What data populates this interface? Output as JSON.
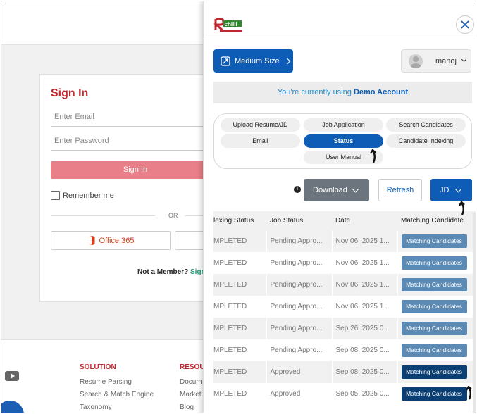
{
  "signin": {
    "title": "Sign In",
    "email_placeholder": "Enter Email",
    "password_placeholder": "Enter Password",
    "signin_label": "Sign In",
    "remember_label": "Remember me",
    "or_label": "OR",
    "office_label": "Office 365",
    "not_member": "Not a Member?",
    "signup_label": "Sign U"
  },
  "footer": {
    "col1": {
      "head": "SOLUTION",
      "items": [
        "Resume Parsing",
        "Search & Match Engine",
        "Taxonomy"
      ]
    },
    "col2": {
      "head": "RESOU",
      "items": [
        "Docum",
        "Market",
        "Blog"
      ]
    }
  },
  "panel": {
    "size_label": "Medium Size",
    "user_name": "manoj",
    "demo_text": "You're currently using",
    "demo_account": "Demo Account",
    "tabs": [
      {
        "label": "Upload Resume/JD",
        "active": false
      },
      {
        "label": "Job Application",
        "active": false
      },
      {
        "label": "Search Candidates",
        "active": false
      },
      {
        "label": "Email",
        "active": false
      },
      {
        "label": "Status",
        "active": true
      },
      {
        "label": "Candidate Indexing",
        "active": false
      },
      {
        "label": "User Manual",
        "active": false
      }
    ],
    "download_label": "Download",
    "refresh_label": "Refresh",
    "jd_label": "JD",
    "columns": [
      "lexing Status",
      "Job Status",
      "Date",
      "Matching Candidate"
    ],
    "rows": [
      {
        "indexing": "MPLETED",
        "job_status": "Pending Appro...",
        "date": "Nov 06, 2025 1...",
        "match": "Matching Candidates",
        "dark": false
      },
      {
        "indexing": "MPLETED",
        "job_status": "Pending Appro...",
        "date": "Nov 06, 2025 1...",
        "match": "Matching Candidates",
        "dark": false
      },
      {
        "indexing": "MPLETED",
        "job_status": "Pending Appro...",
        "date": "Nov 06, 2025 1...",
        "match": "Matching Candidates",
        "dark": false
      },
      {
        "indexing": "MPLETED",
        "job_status": "Pending Appro...",
        "date": "Nov 06, 2025 1...",
        "match": "Matching Candidates",
        "dark": false
      },
      {
        "indexing": "MPLETED",
        "job_status": "Pending Appro...",
        "date": "Sep 26, 2025 0...",
        "match": "Matching Candidates",
        "dark": false
      },
      {
        "indexing": "MPLETED",
        "job_status": "Pending Appro...",
        "date": "Sep 08, 2025 0...",
        "match": "Matching Candidates",
        "dark": false
      },
      {
        "indexing": "MPLETED",
        "job_status": "Approved",
        "date": "Sep 08, 2025 0...",
        "match": "Matching Candidates",
        "dark": true
      },
      {
        "indexing": "MPLETED",
        "job_status": "Approved",
        "date": "Sep 05, 2025 0...",
        "match": "Matching Candidates",
        "dark": true
      }
    ]
  },
  "colors": {
    "primary": "#0d5db6",
    "brand_red": "#c0282f",
    "signin_button": "#e97f88",
    "match_button": "#5b8ab5",
    "match_button_dark": "#0b3f73"
  },
  "icons": [
    "close-icon",
    "resize-icon",
    "chevron-down-icon",
    "info-icon",
    "office-icon",
    "youtube-icon",
    "avatar-icon"
  ]
}
